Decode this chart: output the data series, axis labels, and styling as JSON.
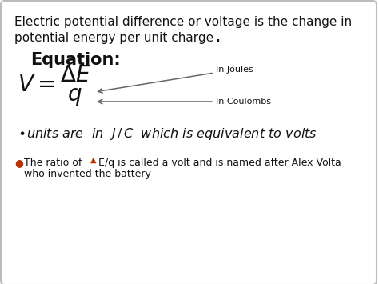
{
  "bg_color": "#ffffff",
  "border_color": "#bbbbbb",
  "title_line1": "Electric potential difference or voltage is the change in",
  "title_line2": "potential energy per unit charge.",
  "title_line2_bold_end": ".",
  "equation_label": "Equation:",
  "label_joules": "In Joules",
  "label_coulombs": "In Coulombs",
  "text_color": "#111111",
  "bullet2_dot_color": "#bb3300",
  "delta_color": "#bb3300",
  "arrow_color": "#666666",
  "font_size_header": 11,
  "font_size_equation_label": 15,
  "font_size_formula": 20,
  "font_size_annot": 8,
  "font_size_bullet1": 11.5,
  "font_size_bullet2": 9
}
